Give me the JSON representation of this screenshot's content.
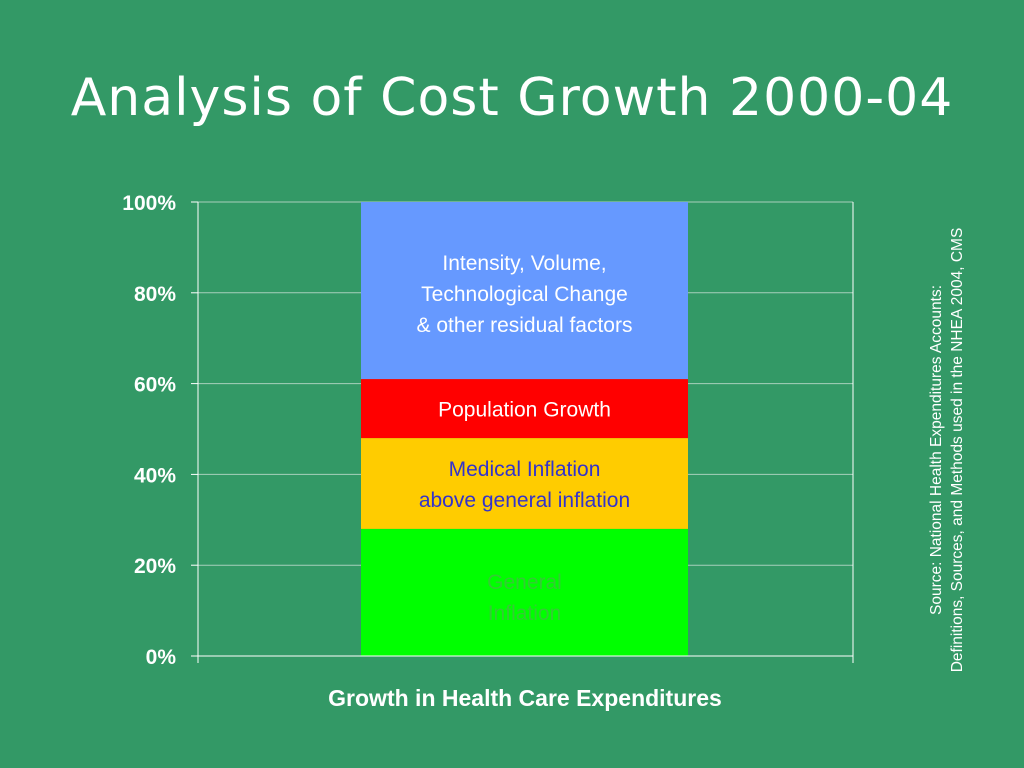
{
  "slide": {
    "title": "Analysis of Cost Growth 2000-04",
    "source_note": [
      "Source: National Health Expenditures Accounts:",
      "Definitions, Sources, and Methods used in the NHEA 2004, CMS"
    ]
  },
  "chart_data": {
    "type": "bar",
    "stacked": true,
    "categories": [
      ""
    ],
    "xlabel": "Growth in Health Care Expenditures",
    "ylabel": "",
    "ylim": [
      0,
      100
    ],
    "yticks": [
      0,
      20,
      40,
      60,
      80,
      100
    ],
    "tick_format": "{v}%",
    "grid": true,
    "legend": "none",
    "series": [
      {
        "label_lines": [
          "General",
          "Inflation"
        ],
        "values": [
          28
        ],
        "color": "#00ff00",
        "label_color": "#33cc33"
      },
      {
        "label_lines": [
          "Medical Inflation",
          "above general inflation"
        ],
        "values": [
          20
        ],
        "color": "#ffcc00",
        "label_color": "#3333cc"
      },
      {
        "label_lines": [
          "Population Growth"
        ],
        "values": [
          13
        ],
        "color": "#ff0000",
        "label_color": "#ffffff"
      },
      {
        "label_lines": [
          "Intensity, Volume,",
          "Technological Change",
          "& other residual factors"
        ],
        "values": [
          39
        ],
        "color": "#6699ff",
        "label_color": "#ffffff"
      }
    ]
  }
}
